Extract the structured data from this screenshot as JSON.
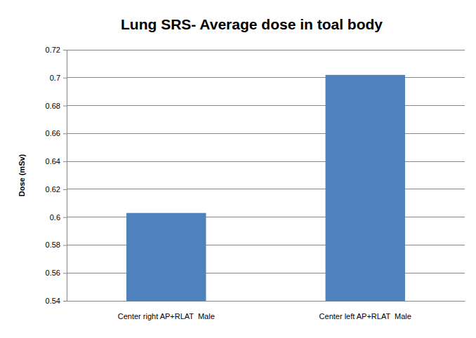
{
  "chart_data": {
    "type": "bar",
    "title": "Lung SRS- Average dose in toal body",
    "y_label": "Dose (mSv)",
    "categories": [
      "Center right AP+RLAT  Male",
      "Center left AP+RLAT  Male"
    ],
    "values": [
      0.603,
      0.702
    ],
    "color": "#4f81bd",
    "ylim": [
      0.54,
      0.72
    ],
    "yticks": [
      0.54,
      0.56,
      0.58,
      0.6,
      0.62,
      0.64,
      0.66,
      0.68,
      0.7,
      0.72
    ],
    "grid": true
  }
}
